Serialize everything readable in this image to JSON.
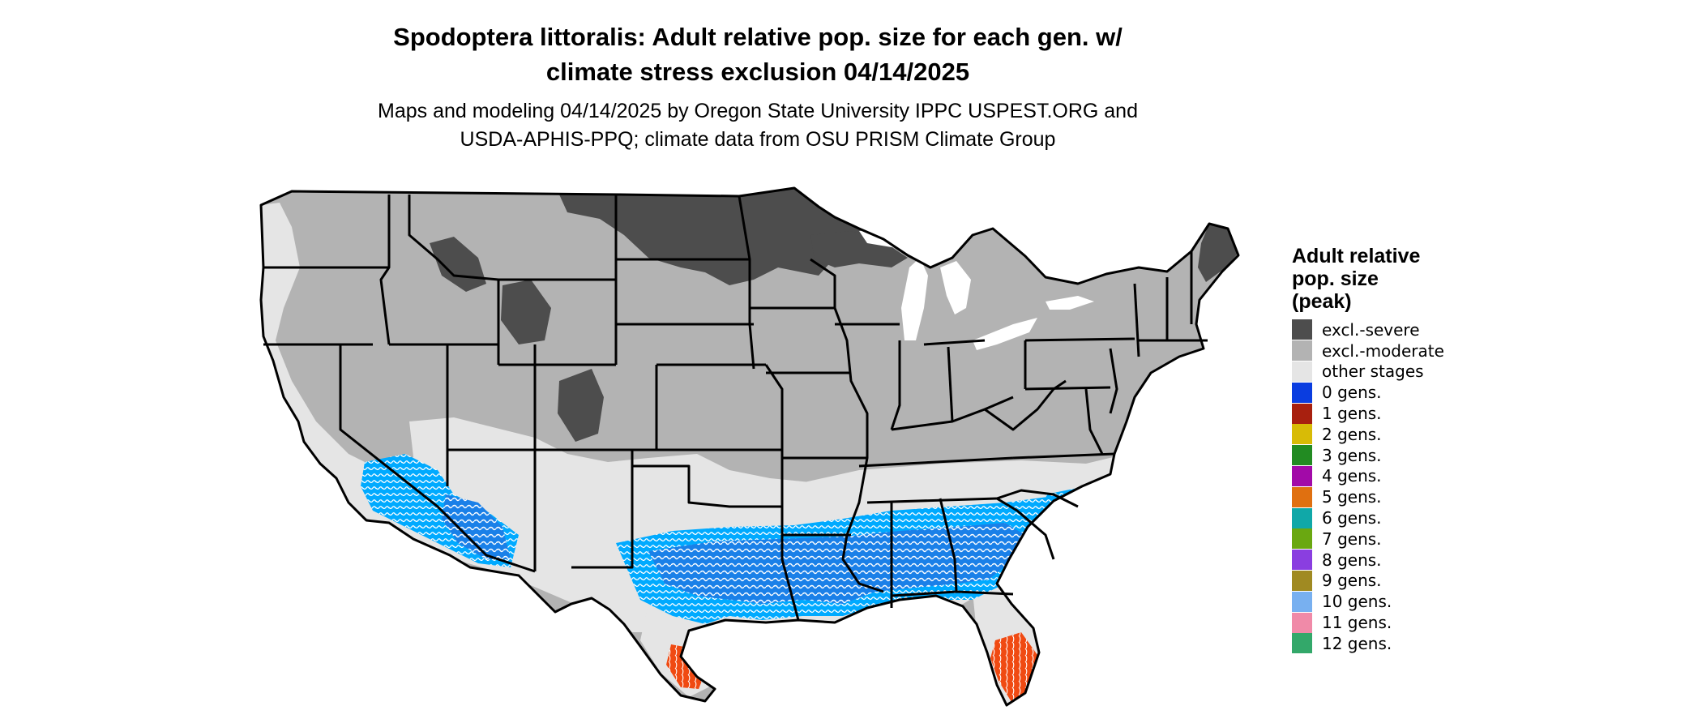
{
  "title": "Spodoptera littoralis: Adult relative pop. size for each gen. w/\nclimate stress exclusion 04/14/2025",
  "subtitle": "Maps and modeling 04/14/2025 by Oregon State University IPPC USPEST.ORG and\nUSDA-APHIS-PPQ; climate data from OSU PRISM Climate Group",
  "legend": {
    "title": "Adult relative\npop. size\n(peak)",
    "items": [
      {
        "label": "excl.-severe",
        "color": "#4d4d4d"
      },
      {
        "label": "excl.-moderate",
        "color": "#b3b3b3"
      },
      {
        "label": "other stages",
        "color": "#e5e5e5"
      },
      {
        "label": "0 gens.",
        "color": "#0a3de0"
      },
      {
        "label": "1 gens.",
        "color": "#a8200f"
      },
      {
        "label": "2 gens.",
        "color": "#d8bb06"
      },
      {
        "label": "3 gens.",
        "color": "#228b22"
      },
      {
        "label": "4 gens.",
        "color": "#a20aa8"
      },
      {
        "label": "5 gens.",
        "color": "#e07010"
      },
      {
        "label": "6 gens.",
        "color": "#10a8a8"
      },
      {
        "label": "7 gens.",
        "color": "#6aa811"
      },
      {
        "label": "8 gens.",
        "color": "#8a3ee0"
      },
      {
        "label": "9 gens.",
        "color": "#a08a22"
      },
      {
        "label": "10 gens.",
        "color": "#78b0f0"
      },
      {
        "label": "11 gens.",
        "color": "#f08aa8"
      },
      {
        "label": "12 gens.",
        "color": "#33a86a"
      }
    ]
  },
  "map_colors": {
    "excl_severe": "#4d4d4d",
    "excl_moderate": "#b3b3b3",
    "other_stages": "#e5e5e5",
    "light_blue_zone": "#00aaff",
    "mid_blue_zone": "#1a80e8",
    "orange_zone": "#f04a12",
    "state_border": "#000000"
  }
}
